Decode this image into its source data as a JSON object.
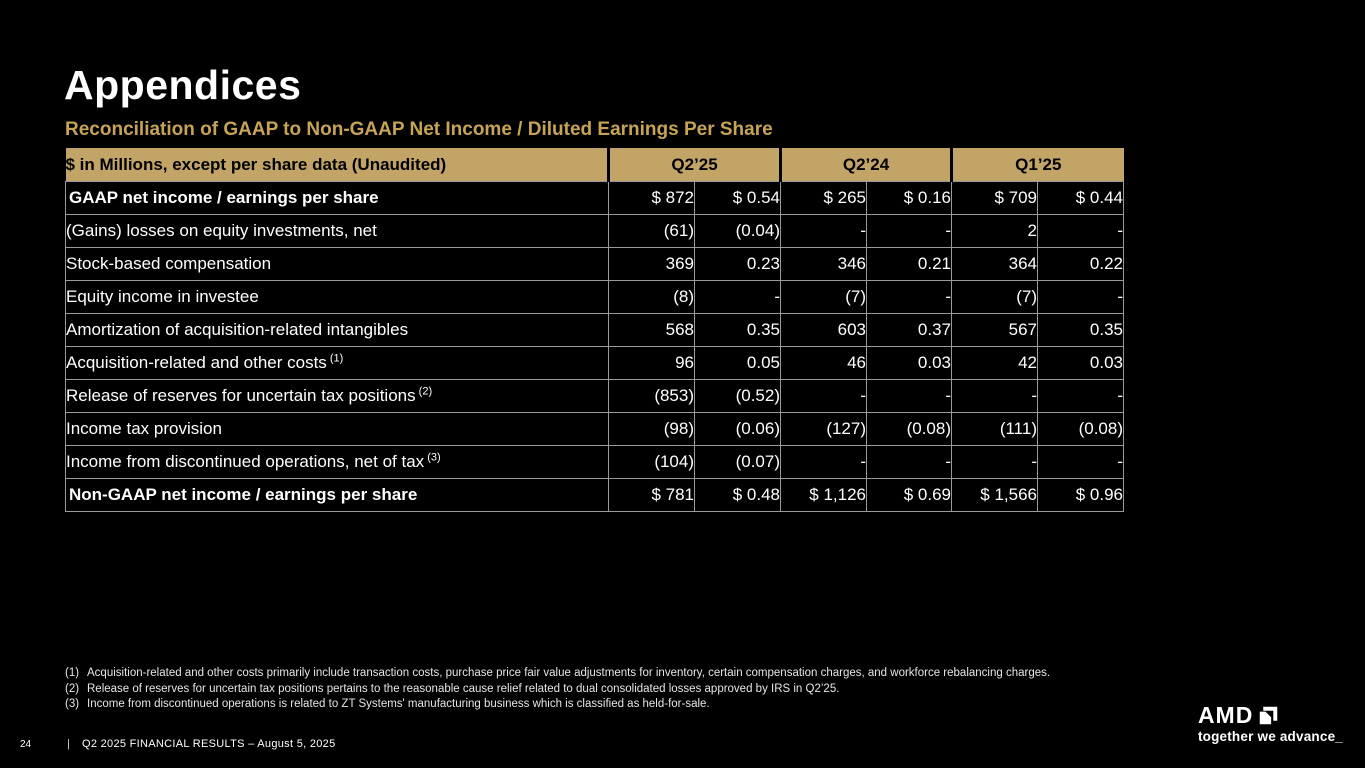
{
  "slide": {
    "title": "Appendices",
    "subtitle": "Reconciliation of GAAP to Non-GAAP Net Income / Diluted Earnings Per Share"
  },
  "table": {
    "header": {
      "label": "$ in Millions, except per share data (Unaudited)",
      "periods": [
        "Q2’25",
        "Q2’24",
        "Q1’25"
      ]
    },
    "rows": [
      {
        "label": "GAAP net income / earnings per share",
        "sup": "",
        "bold": true,
        "values": [
          "$ 872",
          "$ 0.54",
          "$ 265",
          "$ 0.16",
          "$ 709",
          "$ 0.44"
        ]
      },
      {
        "label": "(Gains) losses on equity investments, net",
        "sup": "",
        "bold": false,
        "values": [
          "(61)",
          "(0.04)",
          "-",
          "-",
          "2",
          "-"
        ]
      },
      {
        "label": "Stock-based compensation",
        "sup": "",
        "bold": false,
        "values": [
          "369",
          "0.23",
          "346",
          "0.21",
          "364",
          "0.22"
        ]
      },
      {
        "label": "Equity income in investee",
        "sup": "",
        "bold": false,
        "values": [
          "(8)",
          "-",
          "(7)",
          "-",
          "(7)",
          "-"
        ]
      },
      {
        "label": "Amortization of acquisition-related intangibles",
        "sup": "",
        "bold": false,
        "values": [
          "568",
          "0.35",
          "603",
          "0.37",
          "567",
          "0.35"
        ]
      },
      {
        "label": "Acquisition-related and other costs",
        "sup": "(1)",
        "bold": false,
        "values": [
          "96",
          "0.05",
          "46",
          "0.03",
          "42",
          "0.03"
        ]
      },
      {
        "label": "Release of reserves for uncertain tax positions",
        "sup": "(2)",
        "bold": false,
        "values": [
          "(853)",
          "(0.52)",
          "-",
          "-",
          "-",
          "-"
        ]
      },
      {
        "label": "Income tax provision",
        "sup": "",
        "bold": false,
        "values": [
          "(98)",
          "(0.06)",
          "(127)",
          "(0.08)",
          "(111)",
          "(0.08)"
        ]
      },
      {
        "label": "Income from discontinued operations, net of tax",
        "sup": "(3)",
        "bold": false,
        "values": [
          "(104)",
          "(0.07)",
          "-",
          "-",
          "-",
          "-"
        ]
      },
      {
        "label": "Non-GAAP net income / earnings per share",
        "sup": "",
        "bold": true,
        "values": [
          "$ 781",
          "$ 0.48",
          "$ 1,126",
          "$ 0.69",
          "$ 1,566",
          "$ 0.96"
        ]
      }
    ]
  },
  "footnotes": [
    {
      "marker": "(1)",
      "text": "Acquisition-related and other costs primarily include transaction costs, purchase price fair value adjustments for inventory, certain compensation charges, and workforce rebalancing charges."
    },
    {
      "marker": "(2)",
      "text": "Release of reserves for uncertain tax positions pertains to the reasonable cause relief related to dual consolidated losses approved by IRS in Q2’25."
    },
    {
      "marker": "(3)",
      "text": "Income from discontinued operations is related to ZT Systems' manufacturing business which is classified as held-for-sale."
    }
  ],
  "footer": {
    "page_number": "24",
    "separator": "|",
    "label": "Q2 2025 FINANCIAL RESULTS – August 5, 2025",
    "logo_text": "AMD",
    "tagline": "together we advance_"
  },
  "colors": {
    "background": "#000000",
    "gold_header": "#c2a566",
    "gold_text": "#c7a455",
    "text_white": "#ffffff",
    "border_gray": "#9a9a9a"
  }
}
